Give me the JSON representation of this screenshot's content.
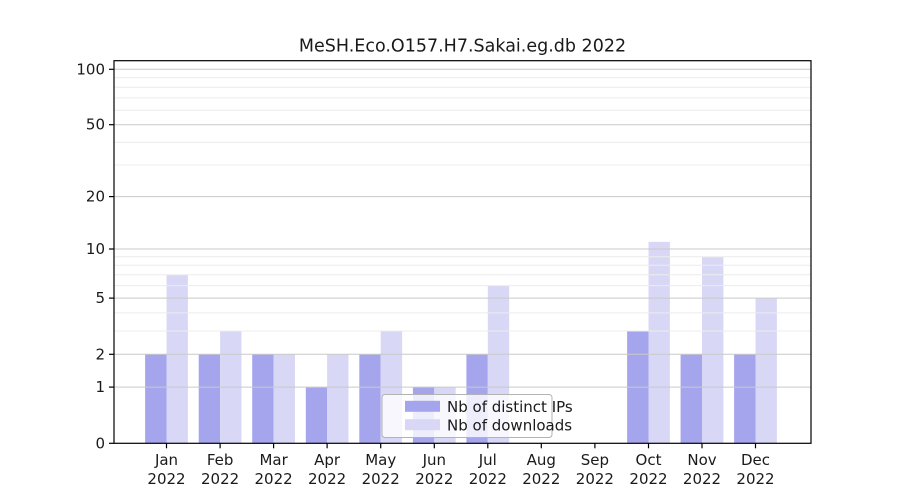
{
  "chart_data": {
    "type": "bar",
    "title": "MeSH.Eco.O157.H7.Sakai.eg.db 2022",
    "categories": [
      "Jan",
      "Feb",
      "Mar",
      "Apr",
      "May",
      "Jun",
      "Jul",
      "Aug",
      "Sep",
      "Oct",
      "Nov",
      "Dec"
    ],
    "category_year": "2022",
    "series": [
      {
        "name": "Nb of distinct IPs",
        "color": "#a5a5ee",
        "values": [
          2,
          2,
          2,
          1,
          2,
          1,
          2,
          0,
          0,
          3,
          2,
          2
        ]
      },
      {
        "name": "Nb of downloads",
        "color": "#d8d8f6",
        "values": [
          7,
          3,
          2,
          2,
          3,
          1,
          6,
          0,
          0,
          11,
          9,
          5
        ]
      }
    ],
    "y_axis": {
      "scale": "log1p",
      "ticks": [
        0,
        1,
        2,
        5,
        10,
        20,
        50,
        100
      ],
      "minor_gridlines": [
        3,
        4,
        6,
        7,
        8,
        9,
        30,
        40,
        60,
        70,
        80,
        90
      ],
      "max_tick": 100
    },
    "legend": {
      "position": "lower center"
    },
    "grid": true
  },
  "colors": {
    "major_grid": "#c9c9c9",
    "minor_grid": "#ececec",
    "spine": "#000000",
    "text": "#1a1a1a",
    "legend_border": "#b3b3b3",
    "legend_bg": "rgba(255,255,255,0.8)"
  }
}
